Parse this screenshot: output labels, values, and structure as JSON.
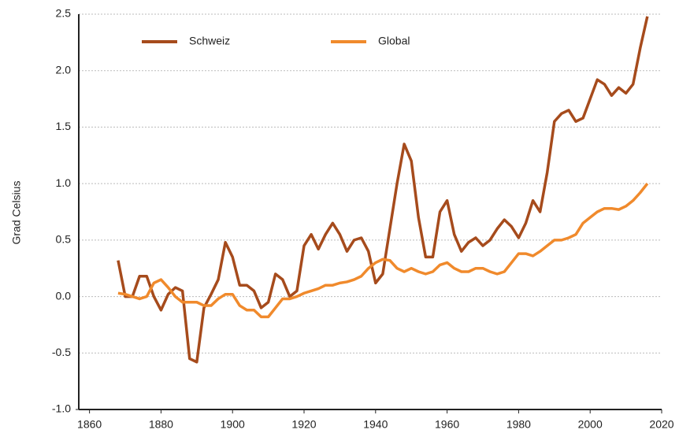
{
  "chart_data": {
    "type": "line",
    "y_label": "Grad Celsius",
    "x": [
      1868,
      1870,
      1872,
      1874,
      1876,
      1878,
      1880,
      1882,
      1884,
      1886,
      1888,
      1890,
      1892,
      1894,
      1896,
      1898,
      1900,
      1902,
      1904,
      1906,
      1908,
      1910,
      1912,
      1914,
      1916,
      1918,
      1920,
      1922,
      1924,
      1926,
      1928,
      1930,
      1932,
      1934,
      1936,
      1938,
      1940,
      1942,
      1944,
      1946,
      1948,
      1950,
      1952,
      1954,
      1956,
      1958,
      1960,
      1962,
      1964,
      1966,
      1968,
      1970,
      1972,
      1974,
      1976,
      1978,
      1980,
      1982,
      1984,
      1986,
      1988,
      1990,
      1992,
      1994,
      1996,
      1998,
      2000,
      2002,
      2004,
      2006,
      2008,
      2010,
      2012,
      2014,
      2016
    ],
    "series": [
      {
        "name": "Schweiz",
        "color": "#a64b1c",
        "values": [
          0.32,
          0,
          0,
          0.18,
          0.18,
          0,
          -0.12,
          0.02,
          0.08,
          0.05,
          -0.55,
          -0.58,
          -0.1,
          0.02,
          0.15,
          0.48,
          0.35,
          0.1,
          0.1,
          0.05,
          -0.1,
          -0.05,
          0.2,
          0.15,
          0,
          0.05,
          0.45,
          0.55,
          0.42,
          0.55,
          0.65,
          0.55,
          0.4,
          0.5,
          0.52,
          0.4,
          0.12,
          0.2,
          0.6,
          1,
          1.35,
          1.2,
          0.7,
          0.35,
          0.35,
          0.75,
          0.85,
          0.55,
          0.4,
          0.48,
          0.52,
          0.45,
          0.5,
          0.6,
          0.68,
          0.62,
          0.52,
          0.65,
          0.85,
          0.75,
          1.1,
          1.55,
          1.62,
          1.65,
          1.55,
          1.58,
          1.75,
          1.92,
          1.88,
          1.78,
          1.85,
          1.8,
          1.88,
          2.2,
          2.48
        ]
      },
      {
        "name": "Global",
        "color": "#f08a2c",
        "values": [
          0.03,
          0.02,
          0,
          -0.02,
          0,
          0.12,
          0.15,
          0.08,
          0,
          -0.05,
          -0.05,
          -0.05,
          -0.08,
          -0.08,
          -0.02,
          0.02,
          0.02,
          -0.08,
          -0.12,
          -0.12,
          -0.18,
          -0.18,
          -0.1,
          -0.02,
          -0.02,
          0,
          0.03,
          0.05,
          0.07,
          0.1,
          0.1,
          0.12,
          0.13,
          0.15,
          0.18,
          0.25,
          0.3,
          0.33,
          0.32,
          0.25,
          0.22,
          0.25,
          0.22,
          0.2,
          0.22,
          0.28,
          0.3,
          0.25,
          0.22,
          0.22,
          0.25,
          0.25,
          0.22,
          0.2,
          0.22,
          0.3,
          0.38,
          0.38,
          0.36,
          0.4,
          0.45,
          0.5,
          0.5,
          0.52,
          0.55,
          0.65,
          0.7,
          0.75,
          0.78,
          0.78,
          0.77,
          0.8,
          0.85,
          0.92,
          1
        ]
      }
    ],
    "xlim": [
      1857,
      2020
    ],
    "xticks": [
      1860,
      1880,
      1900,
      1920,
      1940,
      1960,
      1980,
      2000,
      2020
    ],
    "ylim": [
      -1,
      2.5
    ],
    "yticks": [
      {
        "value": -1,
        "label": "-1.0"
      },
      -0.5,
      {
        "value": 0,
        "label": "0.0"
      },
      0.5,
      {
        "value": 1,
        "label": "1.0"
      },
      1.5,
      {
        "value": 2,
        "label": "2.0"
      },
      2.5
    ],
    "grid": true,
    "legend": "top-left"
  }
}
